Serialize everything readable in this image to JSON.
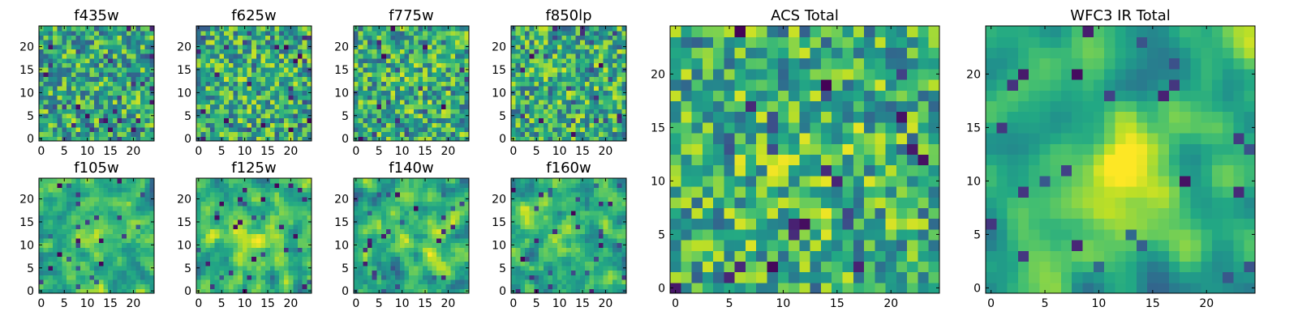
{
  "chart_data": [
    {
      "type": "heatmap",
      "title": "f435w",
      "colormap": "viridis",
      "grid_size": [
        25,
        25
      ],
      "xlim": [
        -0.5,
        24.5
      ],
      "ylim": [
        -0.5,
        24.5
      ],
      "xticks": [
        0,
        5,
        10,
        15,
        20
      ],
      "yticks": [
        0,
        5,
        10,
        15,
        20
      ],
      "seed": 11,
      "smooth": 0,
      "bright_center": 0.0,
      "low_frac": 0.07
    },
    {
      "type": "heatmap",
      "title": "f625w",
      "colormap": "viridis",
      "grid_size": [
        25,
        25
      ],
      "xlim": [
        -0.5,
        24.5
      ],
      "ylim": [
        -0.5,
        24.5
      ],
      "xticks": [
        0,
        5,
        10,
        15,
        20
      ],
      "yticks": [
        0,
        5,
        10,
        15,
        20
      ],
      "seed": 23,
      "smooth": 0,
      "bright_center": 0.1,
      "low_frac": 0.06
    },
    {
      "type": "heatmap",
      "title": "f775w",
      "colormap": "viridis",
      "grid_size": [
        25,
        25
      ],
      "xlim": [
        -0.5,
        24.5
      ],
      "ylim": [
        -0.5,
        24.5
      ],
      "xticks": [
        0,
        5,
        10,
        15,
        20
      ],
      "yticks": [
        0,
        5,
        10,
        15,
        20
      ],
      "seed": 37,
      "smooth": 0,
      "bright_center": 0.1,
      "low_frac": 0.04
    },
    {
      "type": "heatmap",
      "title": "f850lp",
      "colormap": "viridis",
      "grid_size": [
        25,
        25
      ],
      "xlim": [
        -0.5,
        24.5
      ],
      "ylim": [
        -0.5,
        24.5
      ],
      "xticks": [
        0,
        5,
        10,
        15,
        20
      ],
      "yticks": [
        0,
        5,
        10,
        15,
        20
      ],
      "seed": 41,
      "smooth": 0,
      "bright_center": 0.1,
      "low_frac": 0.05
    },
    {
      "type": "heatmap",
      "title": "f105w",
      "colormap": "viridis",
      "grid_size": [
        25,
        25
      ],
      "xlim": [
        -0.5,
        24.5
      ],
      "ylim": [
        -0.5,
        24.5
      ],
      "xticks": [
        0,
        5,
        10,
        15,
        20
      ],
      "yticks": [
        0,
        5,
        10,
        15,
        20
      ],
      "seed": 53,
      "smooth": 1,
      "bright_center": 0.3,
      "low_frac": 0.04
    },
    {
      "type": "heatmap",
      "title": "f125w",
      "colormap": "viridis",
      "grid_size": [
        25,
        25
      ],
      "xlim": [
        -0.5,
        24.5
      ],
      "ylim": [
        -0.5,
        24.5
      ],
      "xticks": [
        0,
        5,
        10,
        15,
        20
      ],
      "yticks": [
        0,
        5,
        10,
        15,
        20
      ],
      "seed": 67,
      "smooth": 1,
      "bright_center": 0.4,
      "low_frac": 0.05
    },
    {
      "type": "heatmap",
      "title": "f140w",
      "colormap": "viridis",
      "grid_size": [
        25,
        25
      ],
      "xlim": [
        -0.5,
        24.5
      ],
      "ylim": [
        -0.5,
        24.5
      ],
      "xticks": [
        0,
        5,
        10,
        15,
        20
      ],
      "yticks": [
        0,
        5,
        10,
        15,
        20
      ],
      "seed": 79,
      "smooth": 1,
      "bright_center": 0.4,
      "low_frac": 0.05
    },
    {
      "type": "heatmap",
      "title": "f160w",
      "colormap": "viridis",
      "grid_size": [
        25,
        25
      ],
      "xlim": [
        -0.5,
        24.5
      ],
      "ylim": [
        -0.5,
        24.5
      ],
      "xticks": [
        0,
        5,
        10,
        15,
        20
      ],
      "yticks": [
        0,
        5,
        10,
        15,
        20
      ],
      "seed": 83,
      "smooth": 1,
      "bright_center": 0.5,
      "low_frac": 0.05
    },
    {
      "type": "heatmap",
      "title": "ACS Total",
      "colormap": "viridis",
      "grid_size": [
        25,
        25
      ],
      "xlim": [
        -0.5,
        24.5
      ],
      "ylim": [
        -0.5,
        24.5
      ],
      "xticks": [
        0,
        5,
        10,
        15,
        20
      ],
      "yticks": [
        0,
        5,
        10,
        15,
        20
      ],
      "seed": 97,
      "smooth": 0,
      "bright_center": 0.3,
      "low_frac": 0.04
    },
    {
      "type": "heatmap",
      "title": "WFC3 IR Total",
      "colormap": "viridis",
      "grid_size": [
        25,
        25
      ],
      "xlim": [
        -0.5,
        24.5
      ],
      "ylim": [
        -0.5,
        24.5
      ],
      "xticks": [
        0,
        5,
        10,
        15,
        20
      ],
      "yticks": [
        0,
        5,
        10,
        15,
        20
      ],
      "seed": 101,
      "smooth": 2,
      "bright_center": 0.8,
      "low_frac": 0.04
    }
  ]
}
